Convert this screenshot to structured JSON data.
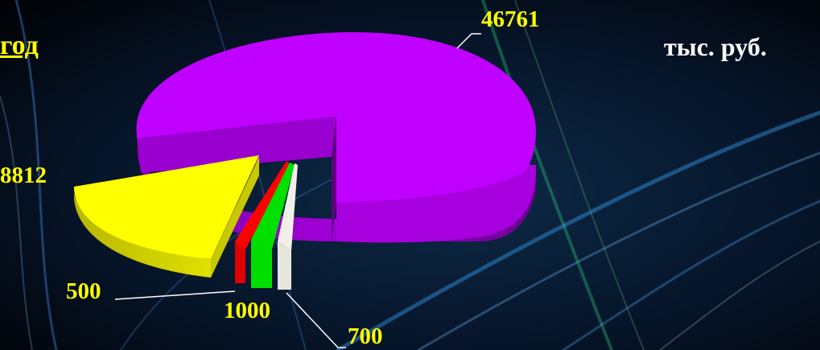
{
  "header": {
    "year_label": "год",
    "unit_label": "тыс. руб."
  },
  "colors": {
    "label_text": "#ffff00",
    "background": "#02050c"
  },
  "chart_data": {
    "type": "pie",
    "style": "3d-exploded",
    "slices": [
      {
        "value": 46761,
        "color": "#c000ff"
      },
      {
        "value": 8812,
        "color": "#ffff00"
      },
      {
        "value": 500,
        "color": "#ff0000"
      },
      {
        "value": 1000,
        "color": "#00e000"
      },
      {
        "value": 700,
        "color": "#f0f0e8"
      }
    ],
    "data_labels": [
      "46761",
      "8812",
      "500",
      "1000",
      "700"
    ]
  }
}
